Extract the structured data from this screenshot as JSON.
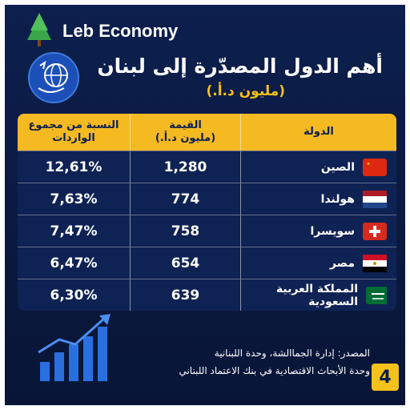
{
  "header": {
    "brand": "Leb Economy",
    "title": "أهم الدول المصدّرة إلى لبنان",
    "subtitle": "(مليون د.أ.)"
  },
  "table": {
    "columns": [
      [
        "النسبة من مجموع",
        "الواردات"
      ],
      [
        "القيمة",
        "(مليون د.أ.)"
      ],
      [
        "الدولة"
      ]
    ],
    "rows": [
      [
        "12,61%",
        "1,280",
        "الصين"
      ],
      [
        "7,63%",
        "774",
        "هولندا"
      ],
      [
        "7,47%",
        "758",
        "سويسرا"
      ],
      [
        "6,47%",
        "654",
        "مصر"
      ],
      [
        "6,30%",
        "639",
        "المملكة العربية السعودية"
      ]
    ]
  },
  "source": [
    "المصدر: إدارة الجماالشة، وحدة اللبنانية",
    "وحدة الأبحاث الاقتصادية في بنك الاعتماد اللبناني"
  ],
  "page_number": "4"
}
